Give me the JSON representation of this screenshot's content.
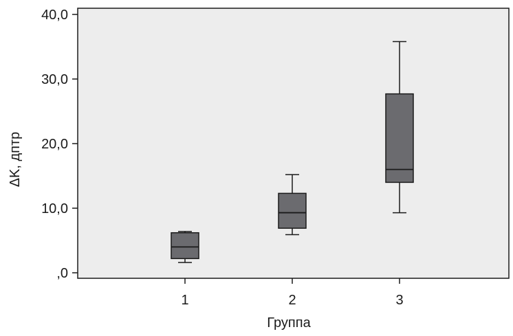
{
  "chart_data": {
    "type": "box",
    "xlabel": "Группа",
    "ylabel": "ΔK, дптр",
    "ylim": [
      0,
      40
    ],
    "y_ticks": [
      {
        "value": 0,
        "label": ",0"
      },
      {
        "value": 10,
        "label": "10,0"
      },
      {
        "value": 20,
        "label": "20,0"
      },
      {
        "value": 30,
        "label": "30,0"
      },
      {
        "value": 40,
        "label": "40,0"
      }
    ],
    "categories": [
      "1",
      "2",
      "3"
    ],
    "boxes": [
      {
        "category": "1",
        "min": 1.6,
        "q1": 2.2,
        "median": 4.0,
        "q3": 6.2,
        "max": 6.4
      },
      {
        "category": "2",
        "min": 5.9,
        "q1": 6.9,
        "median": 9.3,
        "q3": 12.3,
        "max": 15.2
      },
      {
        "category": "3",
        "min": 9.3,
        "q1": 14.0,
        "median": 16.0,
        "q3": 27.7,
        "max": 35.8
      }
    ],
    "colors": {
      "plot_background": "#ededed",
      "box_fill": "#6b6b6f",
      "line": "#1a1a1a"
    },
    "grid": false,
    "legend": "none"
  }
}
